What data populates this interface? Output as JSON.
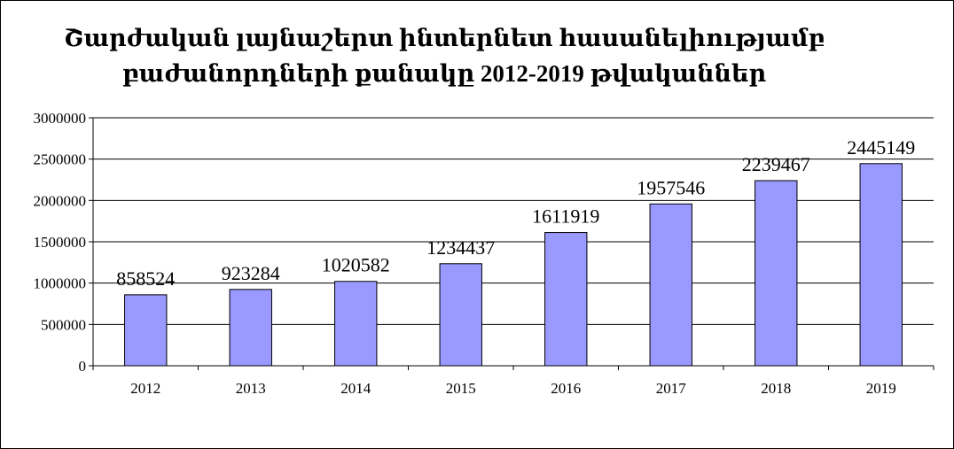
{
  "chart_data": {
    "type": "bar",
    "title_lines": [
      "Շարժական լայնաշերտ ինտերնետ հասանելիությամբ",
      "բաժանորդների քանակը 2012-2019 թվականներ"
    ],
    "categories": [
      "2012",
      "2013",
      "2014",
      "2015",
      "2016",
      "2017",
      "2018",
      "2019"
    ],
    "values": [
      858524,
      923284,
      1020582,
      1234437,
      1611919,
      1957546,
      2239467,
      2445149
    ],
    "y_ticks": [
      0,
      500000,
      1000000,
      1500000,
      2000000,
      2500000,
      3000000
    ],
    "ylim": [
      0,
      3000000
    ],
    "grid": true,
    "legend": "none",
    "bar_color": "#9999ff",
    "bar_stroke": "#000000"
  }
}
